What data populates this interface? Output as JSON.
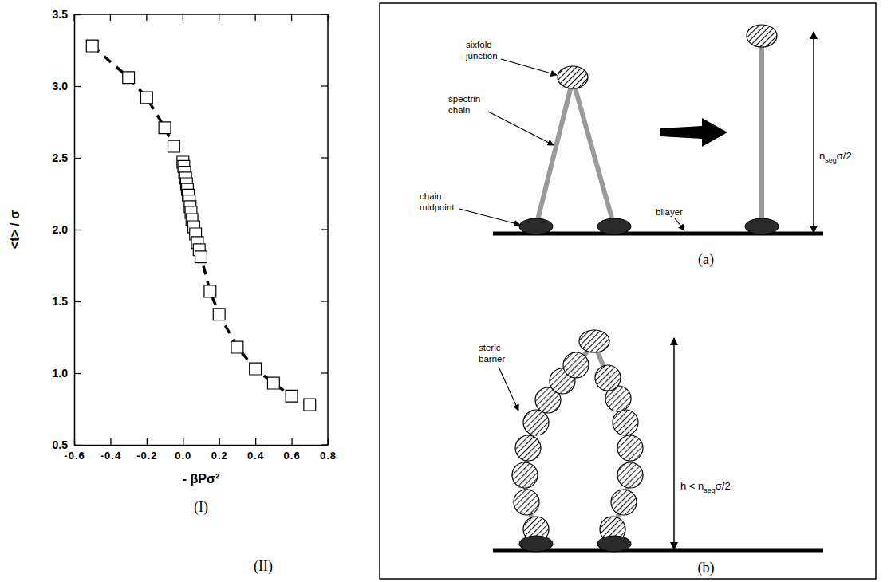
{
  "chart_data": {
    "type": "line",
    "x_label": "- βPσ²",
    "y_label": "<t> / σ",
    "xlim": [
      -0.6,
      0.8
    ],
    "ylim": [
      0.5,
      3.5
    ],
    "xticks": [
      -0.6,
      -0.4,
      -0.2,
      {
        "value": 0,
        "label": "0.0"
      },
      0.2,
      0.4,
      0.6,
      0.8
    ],
    "yticks": [
      0.5,
      {
        "value": 1,
        "label": "1.0"
      },
      1.5,
      {
        "value": 2,
        "label": "2.0"
      },
      2.5,
      {
        "value": 3,
        "label": "3.0"
      },
      3.5
    ],
    "grid": false,
    "x": [
      -0.5,
      -0.3,
      -0.2,
      -0.1,
      -0.05,
      0,
      0.005,
      0.01,
      0.015,
      0.02,
      0.025,
      0.03,
      0.035,
      0.04,
      0.045,
      0.05,
      0.06,
      0.07,
      0.08,
      0.09,
      0.1,
      0.15,
      0.2,
      0.3,
      0.4,
      0.5,
      0.6,
      0.7
    ],
    "series": [
      {
        "color": "#000000",
        "marker": "square",
        "line_style": "dashed",
        "values": [
          3.28,
          3.06,
          2.92,
          2.71,
          2.58,
          2.47,
          2.44,
          2.4,
          2.36,
          2.32,
          2.28,
          2.24,
          2.2,
          2.16,
          2.12,
          2.07,
          2.02,
          1.97,
          1.91,
          1.86,
          1.81,
          1.57,
          1.41,
          1.18,
          1.03,
          0.93,
          0.84,
          0.78
        ]
      }
    ]
  },
  "panels": {
    "chart": "(I)",
    "diagram": "(II)"
  },
  "diagram": {
    "a": {
      "caption": "(a)",
      "junction": "sixfold junction",
      "chain": "spectrin chain",
      "midpoint": "chain midpoint",
      "bilayer": "bilayer",
      "height_label": [
        "n",
        "seg",
        "σ/2"
      ]
    },
    "b": {
      "caption": "(b)",
      "barrier": "steric barrier",
      "height_label": [
        "h < n",
        "seg",
        "σ/2"
      ]
    }
  }
}
